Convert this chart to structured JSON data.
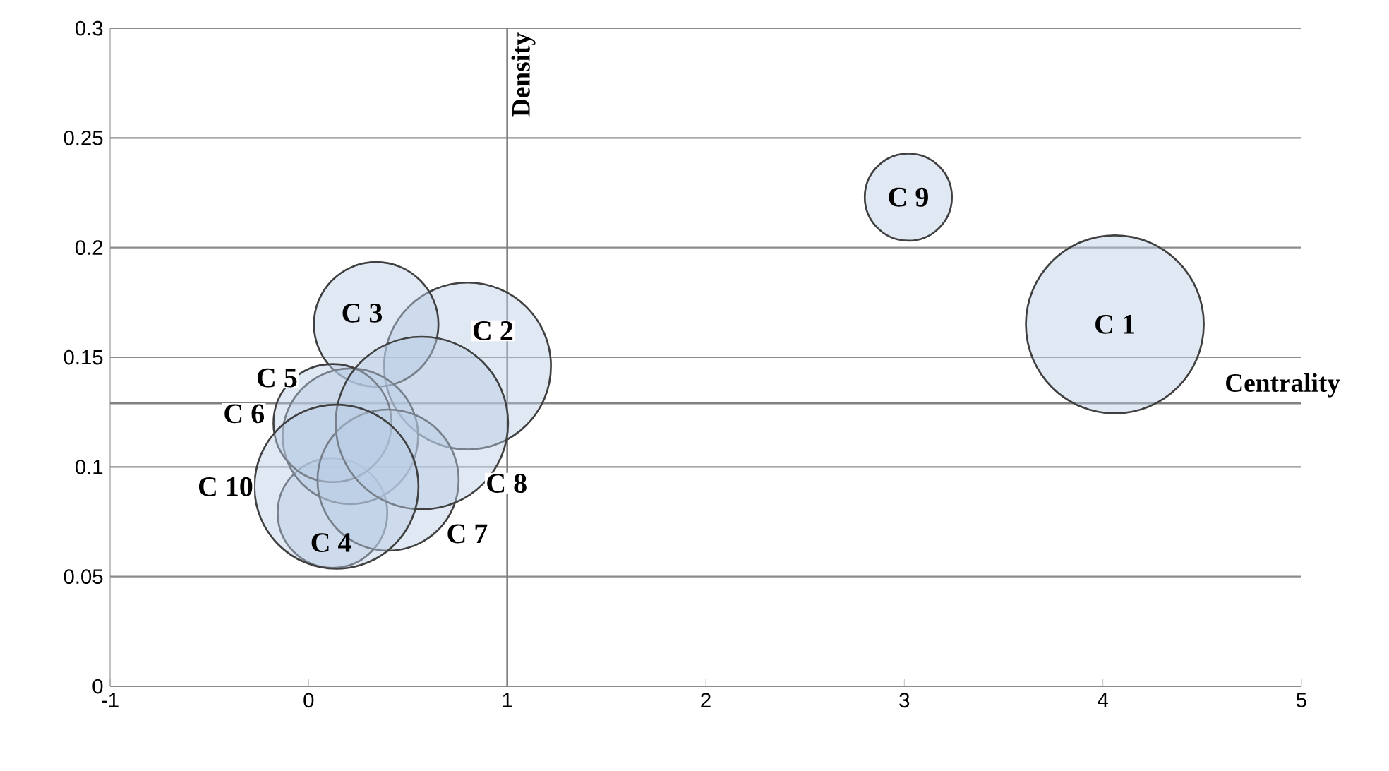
{
  "chart_data": {
    "type": "bubble",
    "x": [
      4.06,
      0.8,
      0.34,
      0.12,
      0.21,
      0.12,
      0.4,
      0.57,
      3.02,
      0.14
    ],
    "values": [
      0.165,
      0.146,
      0.165,
      0.079,
      0.114,
      0.12,
      0.094,
      0.12,
      0.223,
      0.091
    ],
    "sizes": [
      1,
      0.88,
      0.49,
      0.38,
      0.58,
      0.44,
      0.63,
      0.94,
      0.24,
      0.85
    ],
    "color": "#b8cce4",
    "xlim": [
      -1,
      5
    ],
    "ylim": [
      0,
      0.3
    ],
    "xticks": [
      -1,
      0,
      1,
      2,
      3,
      4,
      5
    ],
    "yticks": [
      0,
      0.05,
      0.1,
      0.15,
      0.2,
      0.25,
      0.3
    ],
    "grid": "y",
    "ref_lines": [
      {
        "axis": "x",
        "value": 1,
        "label": "Density",
        "color": "#808080"
      },
      {
        "axis": "y",
        "value": 0.129,
        "label": "Centrality",
        "color": "#808080"
      }
    ],
    "annotations": [
      {
        "text": "C 1",
        "x": 4.06,
        "y": 0.165
      },
      {
        "text": "C 2",
        "x": 0.8,
        "y": 0.146
      },
      {
        "text": "C 3",
        "x": 0.34,
        "y": 0.165
      },
      {
        "text": "C 4",
        "x": 0.12,
        "y": 0.079
      },
      {
        "text": "C 5",
        "x": 0.21,
        "y": 0.114
      },
      {
        "text": "C 6",
        "x": 0.12,
        "y": 0.12
      },
      {
        "text": "C 7",
        "x": 0.4,
        "y": 0.094
      },
      {
        "text": "C 8",
        "x": 0.57,
        "y": 0.12
      },
      {
        "text": "C 9",
        "x": 3.02,
        "y": 0.223
      },
      {
        "text": "C 10",
        "x": 0.14,
        "y": 0.091
      }
    ]
  }
}
